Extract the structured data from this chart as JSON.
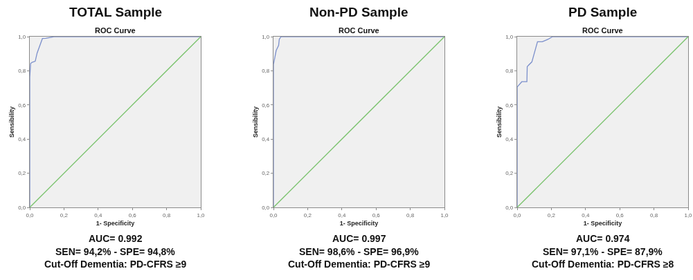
{
  "chart_data": [
    {
      "type": "line",
      "title": "TOTAL Sample",
      "subtitle": "ROC Curve",
      "xlabel": "1- Specificity",
      "ylabel": "Sensibility",
      "xlim": [
        0,
        1
      ],
      "ylim": [
        0,
        1
      ],
      "xticks": [
        {
          "value": 0,
          "label": "0,0"
        },
        {
          "value": 0.2,
          "label": "0,2"
        },
        {
          "value": 0.4,
          "label": "0,4"
        },
        {
          "value": 0.6,
          "label": "0,6"
        },
        {
          "value": 0.8,
          "label": "0,8"
        },
        {
          "value": 1,
          "label": "1,0"
        }
      ],
      "yticks": [
        {
          "value": 0,
          "label": "0,0"
        },
        {
          "value": 0.2,
          "label": "0,2"
        },
        {
          "value": 0.4,
          "label": "0,4"
        },
        {
          "value": 0.6,
          "label": "0,6"
        },
        {
          "value": 0.8,
          "label": "0,8"
        },
        {
          "value": 1,
          "label": "1,0"
        }
      ],
      "series": [
        {
          "color": "#7b8fcb",
          "x": [
            0,
            0,
            0.005,
            0.014,
            0.032,
            0.043,
            0.074,
            0.094,
            0.141,
            1
          ],
          "values": [
            0,
            0.762,
            0.843,
            0.85,
            0.856,
            0.904,
            0.989,
            0.99,
            1,
            1
          ]
        },
        {
          "color": "#78c26b",
          "x": [
            0,
            1
          ],
          "values": [
            0,
            1
          ]
        }
      ],
      "annotations": [
        "AUC= 0.992",
        "SEN= 94,2% - SPE= 94,8%",
        "Cut-Off Dementia: PD-CFRS ≥9"
      ]
    },
    {
      "type": "line",
      "title": "Non-PD Sample",
      "subtitle": "ROC Curve",
      "xlabel": "1- Specificity",
      "ylabel": "Sensibility",
      "xlim": [
        0,
        1
      ],
      "ylim": [
        0,
        1
      ],
      "xticks": [
        {
          "value": 0,
          "label": "0,0"
        },
        {
          "value": 0.2,
          "label": "0,2"
        },
        {
          "value": 0.4,
          "label": "0,4"
        },
        {
          "value": 0.6,
          "label": "0,6"
        },
        {
          "value": 0.8,
          "label": "0,8"
        },
        {
          "value": 1,
          "label": "1,0"
        }
      ],
      "yticks": [
        {
          "value": 0,
          "label": "0,0"
        },
        {
          "value": 0.2,
          "label": "0,2"
        },
        {
          "value": 0.4,
          "label": "0,4"
        },
        {
          "value": 0.6,
          "label": "0,6"
        },
        {
          "value": 0.8,
          "label": "0,8"
        },
        {
          "value": 1,
          "label": "1,0"
        }
      ],
      "series": [
        {
          "color": "#7b8fcb",
          "x": [
            0,
            0,
            0.016,
            0.03,
            0.034,
            0.042,
            0.047,
            1
          ],
          "values": [
            0,
            0.838,
            0.919,
            0.948,
            0.984,
            0.997,
            1,
            1
          ]
        },
        {
          "color": "#78c26b",
          "x": [
            0,
            1
          ],
          "values": [
            0,
            1
          ]
        }
      ],
      "annotations": [
        "AUC= 0.997",
        "SEN= 98,6% - SPE= 96,9%",
        "Cut-Off Dementia: PD-CFRS ≥9"
      ]
    },
    {
      "type": "line",
      "title": "PD Sample",
      "subtitle": "ROC Curve",
      "xlabel": "1- Specificity",
      "ylabel": "Sensibility",
      "xlim": [
        0,
        1
      ],
      "ylim": [
        0,
        1
      ],
      "xticks": [
        {
          "value": 0,
          "label": "0,0"
        },
        {
          "value": 0.2,
          "label": "0,2"
        },
        {
          "value": 0.4,
          "label": "0,4"
        },
        {
          "value": 0.6,
          "label": "0,6"
        },
        {
          "value": 0.8,
          "label": "0,8"
        },
        {
          "value": 1,
          "label": "1,0"
        }
      ],
      "yticks": [
        {
          "value": 0,
          "label": "0,0"
        },
        {
          "value": 0.2,
          "label": "0,2"
        },
        {
          "value": 0.4,
          "label": "0,4"
        },
        {
          "value": 0.6,
          "label": "0,6"
        },
        {
          "value": 0.8,
          "label": "0,8"
        },
        {
          "value": 1,
          "label": "1,0"
        }
      ],
      "series": [
        {
          "color": "#7b8fcb",
          "x": [
            0,
            0,
            0.027,
            0.057,
            0.059,
            0.086,
            0.119,
            0.147,
            0.18,
            0.207,
            1
          ],
          "values": [
            0,
            0.705,
            0.736,
            0.736,
            0.825,
            0.852,
            0.97,
            0.97,
            0.984,
            1,
            1
          ]
        },
        {
          "color": "#78c26b",
          "x": [
            0,
            1
          ],
          "values": [
            0,
            1
          ]
        }
      ],
      "annotations": [
        "AUC= 0.974",
        "SEN= 97,1% - SPE= 87,9%",
        "Cut-Off Dementia: PD-CFRS ≥8"
      ]
    }
  ]
}
